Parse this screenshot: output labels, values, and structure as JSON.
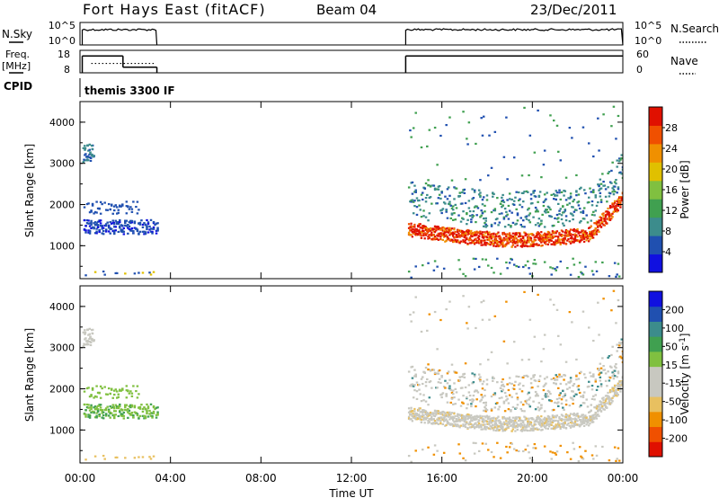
{
  "header": {
    "station": "Fort Hays East (fitACF)",
    "beam": "Beam 04",
    "date": "23/Dec/2011"
  },
  "left_labels": {
    "nsky": "N.Sky",
    "freq_line1": "Freq.",
    "freq_line2": "[MHz]",
    "cpid": "CPID"
  },
  "right_labels": {
    "nsearch": "N.Search",
    "nave": "Nave"
  },
  "cpid_text": "themis 3300 IF",
  "colors": {
    "power_scale": [
      "#1010e0",
      "#2050b0",
      "#3c8c8c",
      "#40a050",
      "#80c040",
      "#e0c000",
      "#f09000",
      "#f05000",
      "#e01000"
    ],
    "velocity_scale": [
      "#e01000",
      "#f05000",
      "#f09000",
      "#e8c060",
      "#c8c8c0",
      "#c8c8c0",
      "#80c040",
      "#40a050",
      "#3c8c8c",
      "#2050b0",
      "#1010e0"
    ]
  },
  "chart_data": [
    {
      "type": "line",
      "panel": "noise",
      "x_ticks": [
        "00:00",
        "04:00",
        "08:00",
        "12:00",
        "16:00",
        "20:00",
        "00:00"
      ],
      "y_left_ticks": [
        "10^5",
        "10^0"
      ],
      "y_right_ticks": [
        "10^5",
        "10^0"
      ],
      "series": [
        {
          "segments": [
            [
              0.1,
              3.4
            ],
            [
              14.4,
              24.0
            ]
          ],
          "level": "10^3.5"
        }
      ]
    },
    {
      "type": "line",
      "panel": "frequency",
      "y_left_ticks": [
        "18",
        "8"
      ],
      "y_right_ticks": [
        "60",
        "0"
      ],
      "frequency_segments": [
        {
          "start_hour": 0.1,
          "end_hour": 1.9,
          "mhz": 15.5
        },
        {
          "start_hour": 1.9,
          "end_hour": 3.4,
          "mhz": 10.5
        },
        {
          "start_hour": 14.4,
          "end_hour": 24.0,
          "mhz": 15.5
        }
      ],
      "nave_level": 25
    },
    {
      "type": "heatmap",
      "panel": "power",
      "ylabel": "Slant Range [km]",
      "y_ticks": [
        "1000",
        "2000",
        "3000",
        "4000"
      ],
      "ylim": [
        200,
        4500
      ],
      "xlim": [
        0,
        24
      ],
      "colorbar_label": "Power [dB]",
      "colorbar_ticks": [
        "4",
        "8",
        "12",
        "16",
        "20",
        "24",
        "28"
      ],
      "colorbar_range": [
        0,
        32
      ]
    },
    {
      "type": "heatmap",
      "panel": "velocity",
      "ylabel": "Slant Range [km]",
      "y_ticks": [
        "1000",
        "2000",
        "3000",
        "4000"
      ],
      "ylim": [
        200,
        4500
      ],
      "xlim": [
        0,
        24
      ],
      "xlabel": "Time UT",
      "x_ticks": [
        "00:00",
        "04:00",
        "08:00",
        "12:00",
        "16:00",
        "20:00",
        "00:00"
      ],
      "colorbar_label_main": "Velocity [m s",
      "colorbar_label_sup": "-1",
      "colorbar_label_end": "]",
      "colorbar_ticks": [
        "200",
        "100",
        "50",
        "15",
        "-15",
        "-50",
        "-100",
        "-200"
      ]
    }
  ]
}
